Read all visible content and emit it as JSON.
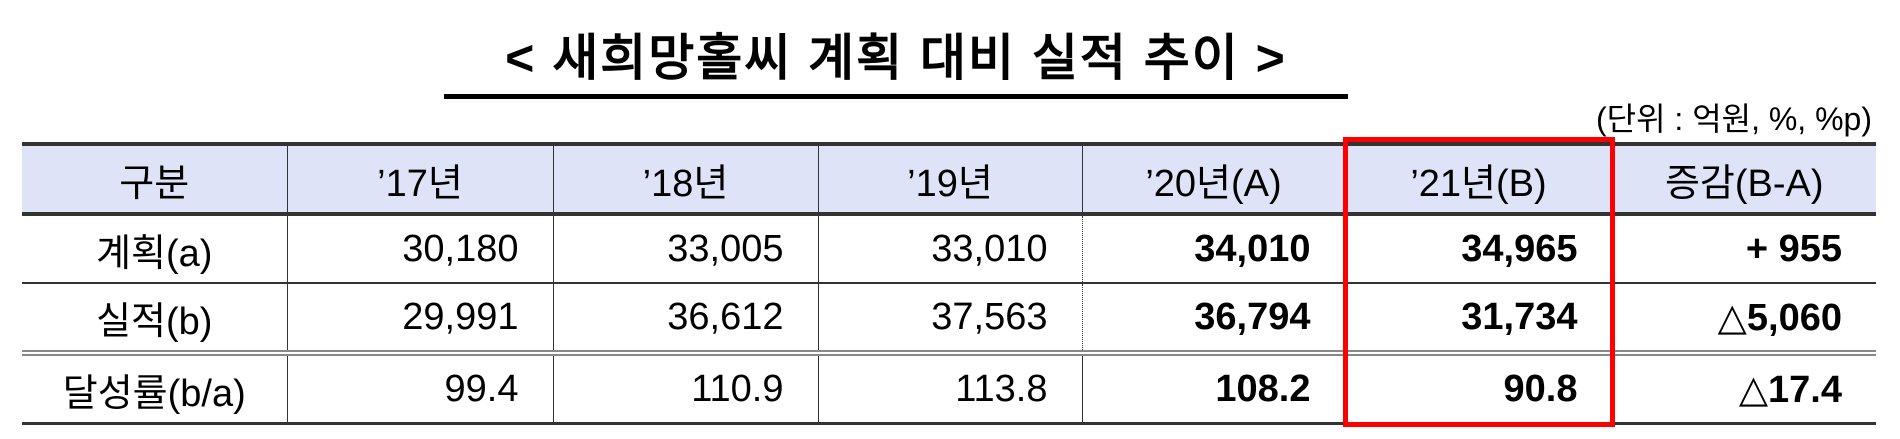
{
  "title": "< 새희망홀씨 계획 대비 실적 추이 >",
  "unit": "(단위 : 억원, %, %p)",
  "table": {
    "headers": [
      "구분",
      "’17년",
      "’18년",
      "’19년",
      "’20년(A)",
      "’21년(B)",
      "증감(B-A)"
    ],
    "rows": [
      {
        "label": "계획(a)",
        "values": [
          "30,180",
          "33,005",
          "33,010",
          "34,010",
          "34,965",
          "+ 955"
        ]
      },
      {
        "label": "실적(b)",
        "values": [
          "29,991",
          "36,612",
          "37,563",
          "36,794",
          "31,734",
          "△5,060"
        ]
      },
      {
        "label": "달성률(b/a)",
        "values": [
          "99.4",
          "110.9",
          "113.8",
          "108.2",
          "90.8",
          "△17.4"
        ]
      }
    ]
  },
  "highlight_color": "#ff0000",
  "header_bg": "#dfe3f7"
}
